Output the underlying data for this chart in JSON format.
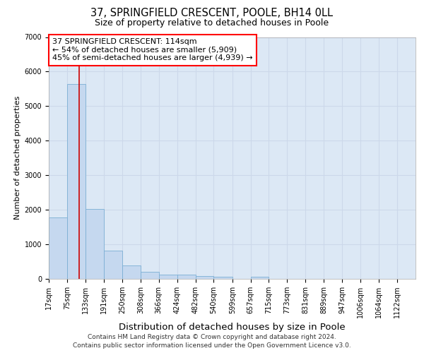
{
  "title1": "37, SPRINGFIELD CRESCENT, POOLE, BH14 0LL",
  "title2": "Size of property relative to detached houses in Poole",
  "xlabel": "Distribution of detached houses by size in Poole",
  "ylabel": "Number of detached properties",
  "footer_line1": "Contains HM Land Registry data © Crown copyright and database right 2024.",
  "footer_line2": "Contains public sector information licensed under the Open Government Licence v3.0.",
  "annotation_line1": "37 SPRINGFIELD CRESCENT: 114sqm",
  "annotation_line2": "← 54% of detached houses are smaller (5,909)",
  "annotation_line3": "45% of semi-detached houses are larger (4,939) →",
  "property_size": 114,
  "bar_edges": [
    17,
    75,
    133,
    191,
    250,
    308,
    366,
    424,
    482,
    540,
    599,
    657,
    715,
    773,
    831,
    889,
    947,
    1006,
    1064,
    1122,
    1180
  ],
  "bar_heights": [
    1780,
    5650,
    2020,
    810,
    380,
    205,
    130,
    115,
    85,
    70,
    0,
    70,
    0,
    0,
    0,
    0,
    0,
    0,
    0,
    0
  ],
  "bar_color": "#c5d8ef",
  "bar_edge_color": "#7bafd4",
  "red_line_color": "#cc0000",
  "grid_color": "#ccd8ea",
  "background_color": "#dce8f5",
  "ylim": [
    0,
    7000
  ],
  "yticks": [
    0,
    1000,
    2000,
    3000,
    4000,
    5000,
    6000,
    7000
  ],
  "fig_bg": "#ffffff",
  "title1_fontsize": 10.5,
  "title2_fontsize": 9.0,
  "ylabel_fontsize": 8.0,
  "xlabel_fontsize": 9.5,
  "tick_fontsize": 7.0,
  "annotation_fontsize": 8.0,
  "footer_fontsize": 6.5
}
